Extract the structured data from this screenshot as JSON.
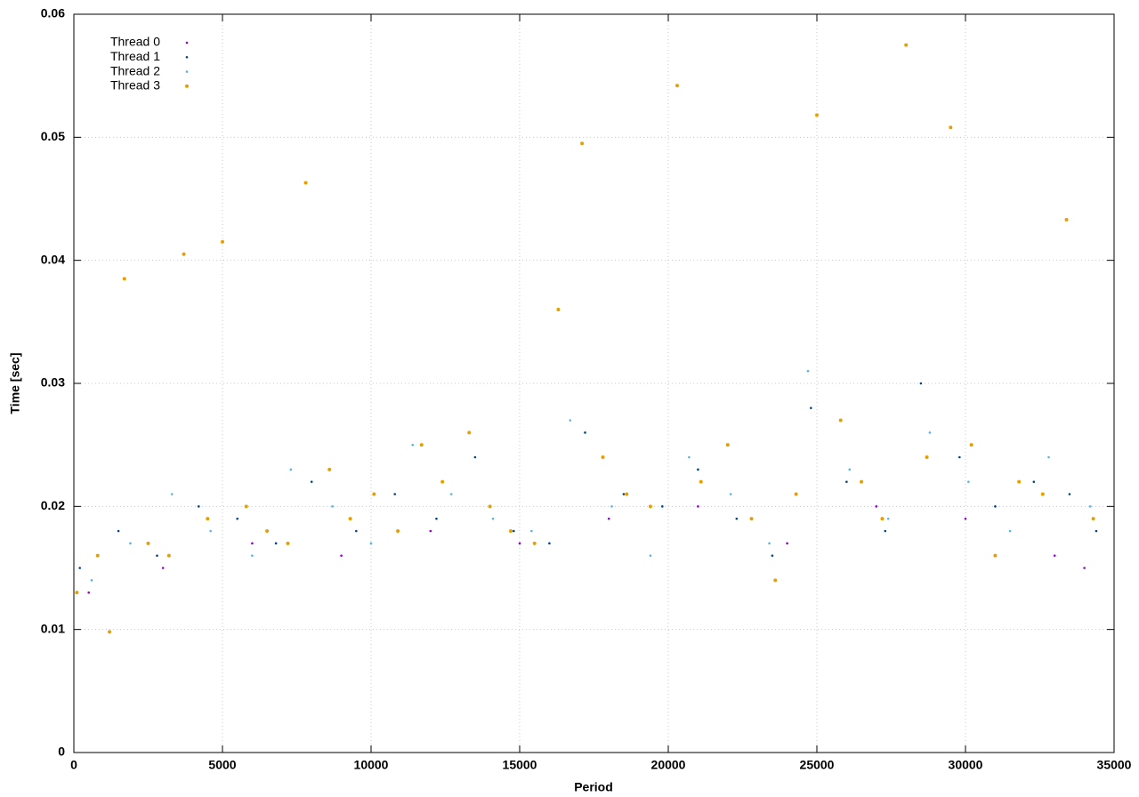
{
  "chart_data": {
    "type": "scatter",
    "x_label": "Period",
    "y_label": "Time [sec]",
    "xlim": [
      0,
      35000
    ],
    "ylim": [
      0,
      0.06
    ],
    "xticks": [
      0,
      5000,
      10000,
      15000,
      20000,
      25000,
      30000,
      35000
    ],
    "yticks": [
      0,
      0.01,
      0.02,
      0.03,
      0.04,
      0.05,
      0.06
    ],
    "grid": true,
    "legend": "top-left",
    "series": [
      {
        "name": "Thread 0",
        "color": "#9400d3",
        "x": [
          500,
          3000,
          6000,
          9000,
          12000,
          15000,
          18000,
          21000,
          24000,
          27000,
          30000,
          33000,
          34000
        ],
        "values": [
          0.013,
          0.015,
          0.017,
          0.016,
          0.018,
          0.017,
          0.019,
          0.02,
          0.017,
          0.02,
          0.019,
          0.016,
          0.015
        ]
      },
      {
        "name": "Thread 1",
        "color": "#004586",
        "x": [
          200,
          1500,
          2800,
          4200,
          5500,
          6800,
          8000,
          9500,
          10800,
          12200,
          13500,
          14800,
          16000,
          17200,
          18500,
          19800,
          21000,
          22300,
          23500,
          24800,
          26000,
          27300,
          28500,
          29800,
          31000,
          32300,
          33500,
          34400
        ],
        "values": [
          0.015,
          0.018,
          0.016,
          0.02,
          0.019,
          0.017,
          0.022,
          0.018,
          0.021,
          0.019,
          0.024,
          0.018,
          0.017,
          0.026,
          0.021,
          0.02,
          0.023,
          0.019,
          0.016,
          0.028,
          0.022,
          0.018,
          0.03,
          0.024,
          0.02,
          0.022,
          0.021,
          0.018
        ]
      },
      {
        "name": "Thread 2",
        "color": "#56b4e9",
        "x": [
          600,
          1900,
          3300,
          4600,
          6000,
          7300,
          8700,
          10000,
          11400,
          12700,
          14100,
          15400,
          16700,
          18100,
          19400,
          20700,
          22100,
          23400,
          24700,
          26100,
          27400,
          28800,
          30100,
          31500,
          32800,
          34200
        ],
        "values": [
          0.014,
          0.017,
          0.021,
          0.018,
          0.016,
          0.023,
          0.02,
          0.017,
          0.025,
          0.021,
          0.019,
          0.018,
          0.027,
          0.02,
          0.016,
          0.024,
          0.021,
          0.017,
          0.031,
          0.023,
          0.019,
          0.026,
          0.022,
          0.018,
          0.024,
          0.02
        ]
      },
      {
        "name": "Thread 3",
        "color": "#e69f00",
        "x": [
          100,
          800,
          1200,
          1700,
          2500,
          3200,
          3700,
          4500,
          5000,
          5800,
          6500,
          7200,
          7800,
          8600,
          9300,
          10100,
          10900,
          11700,
          12400,
          13300,
          14000,
          14700,
          15500,
          16300,
          17100,
          17800,
          18600,
          19400,
          20300,
          21100,
          22000,
          22800,
          23600,
          24300,
          25000,
          25800,
          26500,
          27200,
          28000,
          28700,
          29500,
          30200,
          31000,
          31800,
          32600,
          33400,
          34300
        ],
        "values": [
          0.013,
          0.016,
          0.0098,
          0.0385,
          0.017,
          0.016,
          0.0405,
          0.019,
          0.0415,
          0.02,
          0.018,
          0.017,
          0.0463,
          0.023,
          0.019,
          0.021,
          0.018,
          0.025,
          0.022,
          0.026,
          0.02,
          0.018,
          0.017,
          0.036,
          0.0495,
          0.024,
          0.021,
          0.02,
          0.0542,
          0.022,
          0.025,
          0.019,
          0.014,
          0.021,
          0.0518,
          0.027,
          0.022,
          0.019,
          0.0575,
          0.024,
          0.0508,
          0.025,
          0.016,
          0.022,
          0.021,
          0.0433,
          0.019
        ]
      }
    ]
  }
}
